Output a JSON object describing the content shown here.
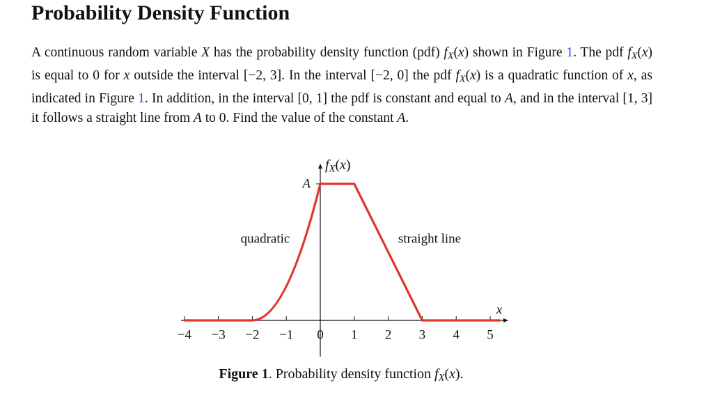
{
  "title": "Probability Density Function",
  "paragraph": [
    {
      "text": "A continuous random variable "
    },
    {
      "text": "X",
      "style": "math"
    },
    {
      "text": " has the probability density function (pdf) "
    },
    {
      "text": "f",
      "style": "math"
    },
    {
      "text": "X",
      "style": "sub"
    },
    {
      "text": "("
    },
    {
      "text": "x",
      "style": "math"
    },
    {
      "text": ") shown in Figure "
    },
    {
      "text": "1",
      "style": "ref"
    },
    {
      "text": ". The pdf "
    },
    {
      "text": "f",
      "style": "math"
    },
    {
      "text": "X",
      "style": "sub"
    },
    {
      "text": "("
    },
    {
      "text": "x",
      "style": "math"
    },
    {
      "text": ") is equal to 0 for "
    },
    {
      "text": "x",
      "style": "math"
    },
    {
      "text": " outside the interval [−2, 3]. In the interval [−2, 0] the pdf "
    },
    {
      "text": "f",
      "style": "math"
    },
    {
      "text": "X",
      "style": "sub"
    },
    {
      "text": "("
    },
    {
      "text": "x",
      "style": "math"
    },
    {
      "text": ") is a quadratic function of "
    },
    {
      "text": "x",
      "style": "math"
    },
    {
      "text": ", as indicated in Figure "
    },
    {
      "text": "1",
      "style": "ref"
    },
    {
      "text": ". In addition, in the interval [0, 1] the pdf is constant and equal to "
    },
    {
      "text": "A",
      "style": "math"
    },
    {
      "text": ", and in the interval [1, 3] it follows a straight line from "
    },
    {
      "text": "A",
      "style": "math"
    },
    {
      "text": " to 0. Find the value of the constant "
    },
    {
      "text": "A",
      "style": "math"
    },
    {
      "text": "."
    }
  ],
  "chart_data": {
    "type": "line",
    "y_label": [
      {
        "text": "f",
        "style": "math"
      },
      {
        "text": "X",
        "style": "sub"
      },
      {
        "text": "("
      },
      {
        "text": "x",
        "style": "math"
      },
      {
        "text": ")"
      }
    ],
    "x_label": "x",
    "xlim": [
      -4.2,
      5.5
    ],
    "ylim": [
      0,
      1
    ],
    "xticks": [
      {
        "value": -4,
        "label": "−4"
      },
      {
        "value": -3,
        "label": "−3"
      },
      {
        "value": -2,
        "label": "−2"
      },
      {
        "value": -1,
        "label": "−1"
      },
      0,
      1,
      2,
      3,
      4,
      5
    ],
    "yticks": [
      {
        "value": 1,
        "label": "A"
      }
    ],
    "series": [
      {
        "color": "#e0352b",
        "x": [
          -4,
          -2,
          0,
          1,
          3,
          5.3
        ],
        "values": [
          0,
          0,
          1,
          1,
          0,
          0
        ],
        "segments": [
          "line",
          "quadratic",
          "line",
          "line",
          "line"
        ]
      }
    ],
    "annotations": [
      "quadratic",
      "straight line"
    ],
    "caption": [
      {
        "text": "Figure 1",
        "style": "lead"
      },
      {
        "text": ". Probability density function "
      },
      {
        "text": "f",
        "style": "math"
      },
      {
        "text": "X",
        "style": "sub"
      },
      {
        "text": "("
      },
      {
        "text": "x",
        "style": "math"
      },
      {
        "text": ")."
      }
    ]
  }
}
